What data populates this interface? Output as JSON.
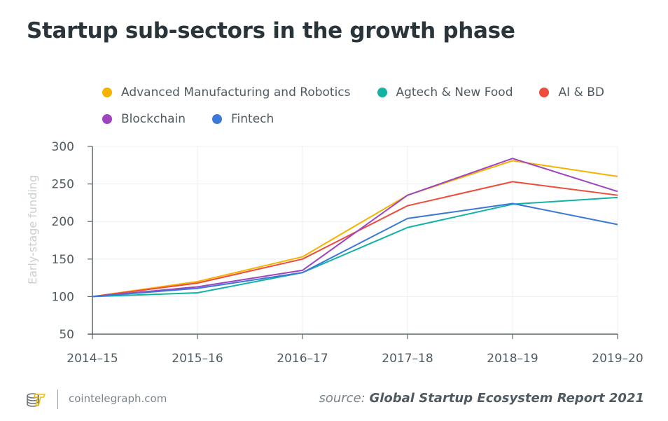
{
  "chart_data": {
    "type": "line",
    "title": "Startup sub-sectors in the growth phase",
    "xlabel": "",
    "ylabel": "Early-stage funding",
    "categories": [
      "2014–15",
      "2015–16",
      "2016–17",
      "2017–18",
      "2018–19",
      "2019–20"
    ],
    "ylim": [
      50,
      300
    ],
    "yticks": [
      50,
      100,
      150,
      200,
      250,
      300
    ],
    "grid": true,
    "legend_position": "top",
    "series": [
      {
        "name": "Advanced Manufacturing and Robotics",
        "color": "#F5B300",
        "values": [
          100,
          120,
          153,
          235,
          281,
          260
        ]
      },
      {
        "name": "Agtech & New Food",
        "color": "#13B3A4",
        "values": [
          100,
          105,
          132,
          192,
          223,
          232
        ]
      },
      {
        "name": "AI & BD",
        "color": "#EF4B3A",
        "values": [
          100,
          118,
          150,
          221,
          253,
          235
        ]
      },
      {
        "name": "Blockchain",
        "color": "#9E44BE",
        "values": [
          100,
          113,
          135,
          235,
          284,
          240
        ]
      },
      {
        "name": "Fintech",
        "color": "#3C78D8",
        "values": [
          100,
          111,
          132,
          204,
          224,
          196
        ]
      }
    ]
  },
  "footer": {
    "site": "cointelegraph.com",
    "source_prefix": "source:",
    "source_name": "Global Startup Ecosystem Report 2021"
  },
  "icons": {
    "logo": "cointelegraph-logo-icon"
  }
}
